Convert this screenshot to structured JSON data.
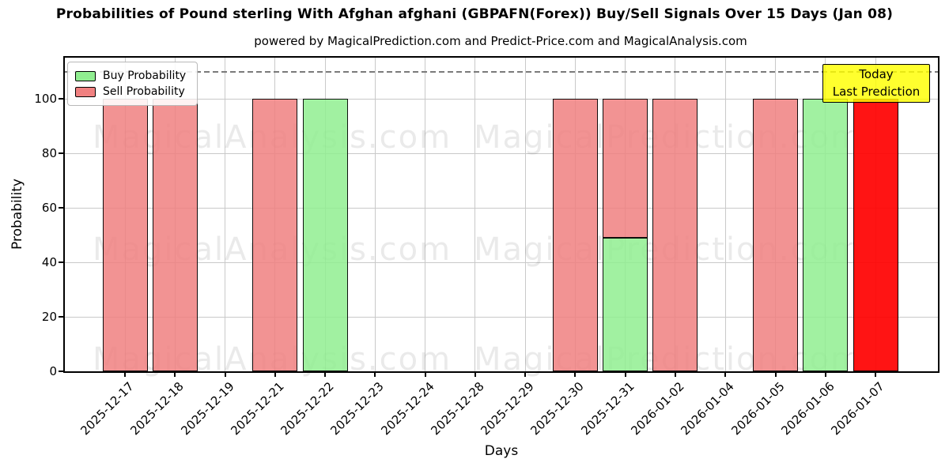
{
  "title": "Probabilities of Pound sterling With Afghan afghani (GBPAFN(Forex)) Buy/Sell Signals Over 15 Days (Jan 08)",
  "subtitle": "powered by MagicalPrediction.com and Predict-Price.com and MagicalAnalysis.com",
  "legend": {
    "items": [
      {
        "label": "Buy Probability",
        "color": "#90ee90"
      },
      {
        "label": "Sell Probability",
        "color": "#f08080"
      }
    ]
  },
  "annotation": {
    "line1": "Today",
    "line2": "Last Prediction",
    "bg_color": "#ffff00"
  },
  "chart_data": {
    "type": "bar",
    "stacked": true,
    "title": "Probabilities of Pound sterling With Afghan afghani (GBPAFN(Forex)) Buy/Sell Signals Over 15 Days (Jan 08)",
    "xlabel": "Days",
    "ylabel": "Probability",
    "categories": [
      "2025-12-17",
      "2025-12-18",
      "2025-12-19",
      "2025-12-21",
      "2025-12-22",
      "2025-12-23",
      "2025-12-24",
      "2025-12-28",
      "2025-12-29",
      "2025-12-30",
      "2025-12-31",
      "2026-01-02",
      "2026-01-04",
      "2026-01-05",
      "2026-01-06",
      "2026-01-07"
    ],
    "series": [
      {
        "name": "Buy Probability",
        "color": "#90ee90",
        "values": [
          0,
          0,
          0,
          0,
          100,
          0,
          0,
          0,
          0,
          0,
          49,
          0,
          0,
          0,
          100,
          0
        ]
      },
      {
        "name": "Sell Probability",
        "color": "#f08080",
        "values": [
          100,
          100,
          0,
          100,
          0,
          0,
          0,
          0,
          0,
          100,
          51,
          100,
          0,
          100,
          0,
          0
        ]
      }
    ],
    "today_bar": {
      "category": "2026-01-07",
      "value": 100,
      "color": "#ff0000",
      "label": "Today Last Prediction"
    },
    "yticks": [
      0,
      20,
      40,
      60,
      80,
      100
    ],
    "ylim": [
      0,
      115
    ],
    "dashed_line_y": 110,
    "grid": true,
    "legend_position": "upper left",
    "watermarks": [
      "MagicalAnalysis.com",
      "MagicalPrediction.com"
    ]
  }
}
